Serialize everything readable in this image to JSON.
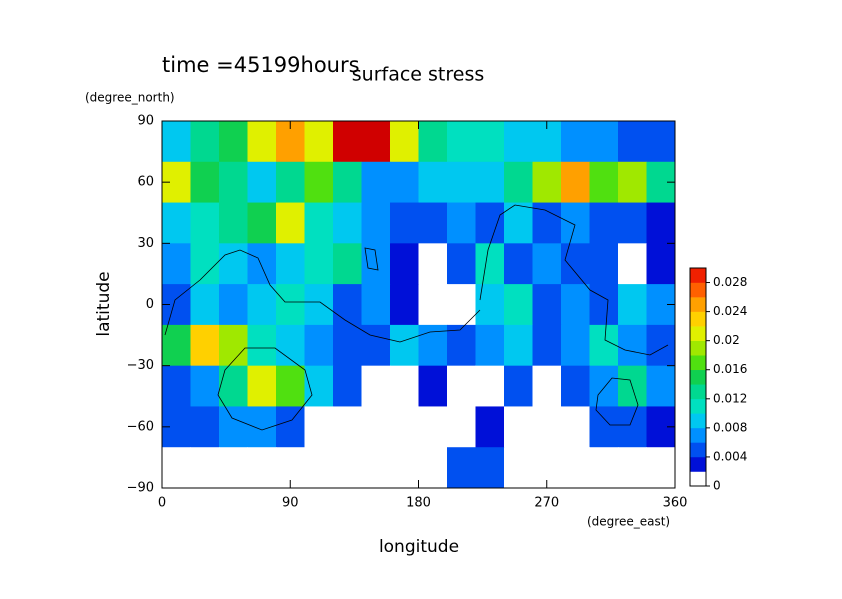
{
  "chart_data": {
    "type": "contour",
    "title": "surface stress",
    "subtitle": "time =45199hours",
    "xlabel": "longitude",
    "xunits": "(degree_east)",
    "ylabel": "latitude",
    "yunits": "(degree_north)",
    "xlim": [
      0,
      360
    ],
    "ylim": [
      -90,
      90
    ],
    "xticks": [
      0,
      90,
      180,
      270,
      360
    ],
    "yticks": [
      {
        "value": -90,
        "label": "−90"
      },
      {
        "value": -60,
        "label": "−60"
      },
      {
        "value": -30,
        "label": "−30"
      },
      0,
      30,
      60,
      90
    ],
    "x": [
      10,
      30,
      50,
      70,
      90,
      110,
      130,
      150,
      170,
      190,
      210,
      230,
      250,
      270,
      290,
      310,
      330,
      350
    ],
    "y": [
      80,
      60,
      40,
      20,
      0,
      -20,
      -40,
      -60,
      -80
    ],
    "z": [
      [
        0.008,
        0.012,
        0.014,
        0.02,
        0.024,
        0.02,
        0.03,
        0.03,
        0.02,
        0.012,
        0.01,
        0.01,
        0.008,
        0.008,
        0.006,
        0.006,
        0.004,
        0.004
      ],
      [
        0.02,
        0.014,
        0.012,
        0.008,
        0.012,
        0.016,
        0.012,
        0.006,
        0.006,
        0.008,
        0.008,
        0.008,
        0.012,
        0.018,
        0.024,
        0.016,
        0.018,
        0.012
      ],
      [
        0.008,
        0.01,
        0.012,
        0.014,
        0.02,
        0.01,
        0.008,
        0.006,
        0.004,
        0.004,
        0.006,
        0.004,
        0.008,
        0.004,
        0.006,
        0.004,
        0.004,
        0.003
      ],
      [
        0.006,
        0.01,
        0.008,
        0.006,
        0.008,
        0.01,
        0.012,
        0.006,
        0.002,
        0.001,
        0.004,
        0.01,
        0.004,
        0.006,
        0.004,
        0.004,
        0.001,
        0.002
      ],
      [
        0.004,
        0.008,
        0.006,
        0.008,
        0.01,
        0.008,
        0.004,
        0.006,
        0.003,
        0.001,
        0.001,
        0.008,
        0.01,
        0.004,
        0.006,
        0.004,
        0.008,
        0.006
      ],
      [
        0.014,
        0.022,
        0.018,
        0.01,
        0.008,
        0.006,
        0.004,
        0.004,
        0.008,
        0.006,
        0.004,
        0.006,
        0.008,
        0.004,
        0.006,
        0.01,
        0.006,
        0.004
      ],
      [
        0.004,
        0.006,
        0.012,
        0.02,
        0.016,
        0.008,
        0.004,
        0.001,
        0.001,
        0.002,
        0.001,
        0.001,
        0.004,
        0.001,
        0.004,
        0.006,
        0.012,
        0.006
      ],
      [
        0.004,
        0.004,
        0.006,
        0.006,
        0.004,
        0.001,
        0.001,
        0.001,
        0.001,
        0.001,
        0.001,
        0.002,
        0.001,
        0.001,
        0.001,
        0.004,
        0.004,
        0.002
      ],
      [
        0.001,
        0.001,
        0.001,
        0.001,
        0.001,
        0.001,
        0.001,
        0.001,
        0.001,
        0.001,
        0.004,
        0.004,
        0.001,
        0.001,
        0.001,
        0.001,
        0.001,
        0.001
      ]
    ],
    "zlim": [
      0,
      0.03
    ],
    "zticks": [
      0,
      0.004,
      0.008,
      0.012,
      0.016,
      0.02,
      0.024,
      0.028
    ],
    "colorscale": [
      {
        "value": 0.002,
        "color": "#0010d8"
      },
      {
        "value": 0.004,
        "color": "#0050f0"
      },
      {
        "value": 0.006,
        "color": "#0090ff"
      },
      {
        "value": 0.008,
        "color": "#00c8f0"
      },
      {
        "value": 0.01,
        "color": "#00e0c0"
      },
      {
        "value": 0.012,
        "color": "#00d890"
      },
      {
        "value": 0.014,
        "color": "#10d050"
      },
      {
        "value": 0.016,
        "color": "#50e010"
      },
      {
        "value": 0.018,
        "color": "#a0e800"
      },
      {
        "value": 0.02,
        "color": "#e0f000"
      },
      {
        "value": 0.022,
        "color": "#ffd000"
      },
      {
        "value": 0.024,
        "color": "#ffa000"
      },
      {
        "value": 0.026,
        "color": "#ff6000"
      },
      {
        "value": 0.028,
        "color": "#f02000"
      },
      {
        "value": 0.03,
        "color": "#d00000"
      }
    ]
  }
}
